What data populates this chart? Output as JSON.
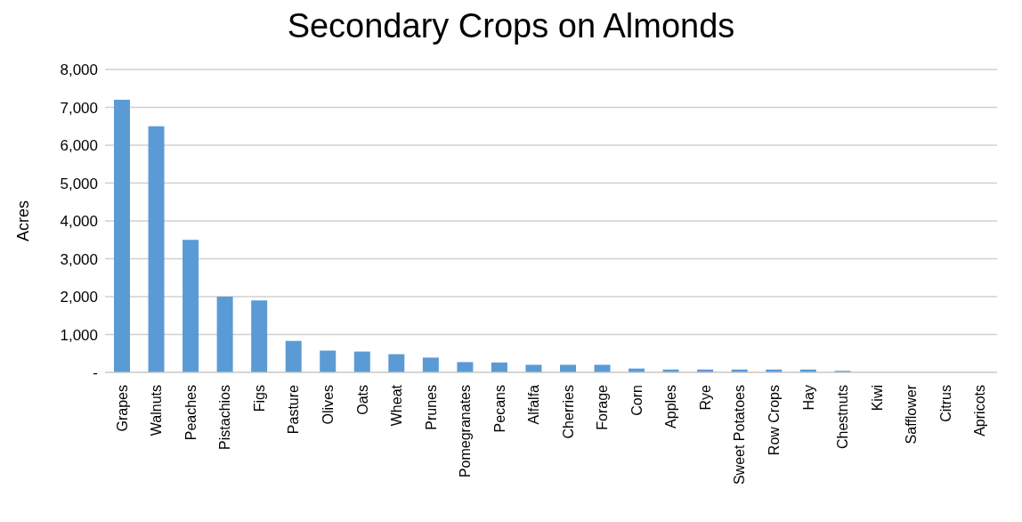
{
  "chart_data": {
    "type": "bar",
    "title": "Secondary Crops on Almonds",
    "ylabel": "Acres",
    "categories": [
      "Grapes",
      "Walnuts",
      "Peaches",
      "Pistachios",
      "Figs",
      "Pasture",
      "Olives",
      "Oats",
      "Wheat",
      "Prunes",
      "Pomegranates",
      "Pecans",
      "Alfalfa",
      "Cherries",
      "Forage",
      "Corn",
      "Apples",
      "Rye",
      "Sweet Potatoes",
      "Row Crops",
      "Hay",
      "Chestnuts",
      "Kiwi",
      "Safflower",
      "Citrus",
      "Apricots"
    ],
    "values": [
      7200,
      6500,
      3500,
      2000,
      1900,
      830,
      575,
      550,
      480,
      390,
      270,
      260,
      200,
      200,
      200,
      100,
      75,
      75,
      75,
      75,
      75,
      40,
      0,
      0,
      0,
      0
    ],
    "color": "#5b9bd5",
    "ylim": [
      0,
      8000
    ],
    "yticks": [
      {
        "value": 0,
        "label": "-"
      },
      {
        "value": 1000,
        "label": "1,000"
      },
      {
        "value": 2000,
        "label": "2,000"
      },
      {
        "value": 3000,
        "label": "3,000"
      },
      {
        "value": 4000,
        "label": "4,000"
      },
      {
        "value": 5000,
        "label": "5,000"
      },
      {
        "value": 6000,
        "label": "6,000"
      },
      {
        "value": 7000,
        "label": "7,000"
      },
      {
        "value": 8000,
        "label": "8,000"
      }
    ],
    "grid": "y"
  }
}
